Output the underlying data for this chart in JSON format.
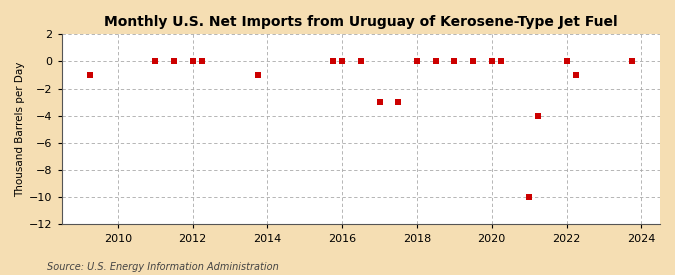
{
  "title": "Monthly U.S. Net Imports from Uruguay of Kerosene-Type Jet Fuel",
  "ylabel": "Thousand Barrels per Day",
  "source": "Source: U.S. Energy Information Administration",
  "fig_background_color": "#f5deb3",
  "plot_background_color": "#ffffff",
  "data_points": [
    [
      2009.25,
      -1.0
    ],
    [
      2011.0,
      0.0
    ],
    [
      2011.5,
      0.0
    ],
    [
      2012.0,
      0.0
    ],
    [
      2012.25,
      0.0
    ],
    [
      2013.75,
      -1.0
    ],
    [
      2015.75,
      0.0
    ],
    [
      2016.0,
      0.0
    ],
    [
      2016.5,
      0.0
    ],
    [
      2017.0,
      -3.0
    ],
    [
      2017.5,
      -3.0
    ],
    [
      2018.0,
      0.0
    ],
    [
      2018.5,
      0.0
    ],
    [
      2019.0,
      0.0
    ],
    [
      2019.5,
      0.0
    ],
    [
      2020.0,
      0.0
    ],
    [
      2020.25,
      0.0
    ],
    [
      2021.0,
      -10.0
    ],
    [
      2021.25,
      -4.0
    ],
    [
      2022.0,
      0.0
    ],
    [
      2022.25,
      -1.0
    ],
    [
      2023.75,
      0.0
    ]
  ],
  "xlim": [
    2008.5,
    2024.5
  ],
  "ylim": [
    -12,
    2
  ],
  "yticks": [
    2,
    0,
    -2,
    -4,
    -6,
    -8,
    -10,
    -12
  ],
  "xticks": [
    2010,
    2012,
    2014,
    2016,
    2018,
    2020,
    2022,
    2024
  ],
  "marker_color": "#cc0000",
  "marker_size": 4,
  "grid_color": "#aaaaaa",
  "title_fontsize": 10,
  "label_fontsize": 7.5,
  "tick_fontsize": 8,
  "source_fontsize": 7
}
